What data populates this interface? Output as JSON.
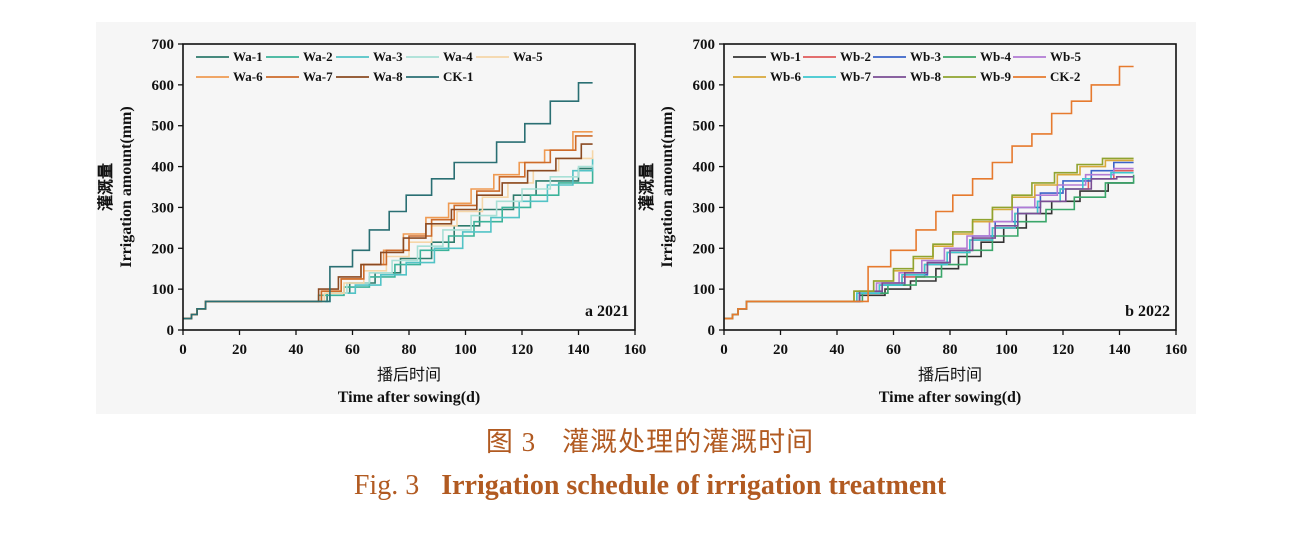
{
  "caption": {
    "cn_label": "图 3",
    "cn_title": "灌溉处理的灌溉时间",
    "en_label": "Fig. 3",
    "en_title": "Irrigation schedule of irrigation treatment"
  },
  "colors": {
    "Wa-1": "#2e7b6c",
    "Wa-2": "#3bb39a",
    "Wa-3": "#52c3c6",
    "Wa-4": "#a8e0d6",
    "Wa-5": "#f5d6a8",
    "Wa-6": "#ef9a52",
    "Wa-7": "#cd6b2a",
    "Wa-8": "#8b4a22",
    "CK-1": "#2a6f73",
    "Wb-1": "#333333",
    "Wb-2": "#e05a5a",
    "Wb-3": "#3b63c9",
    "Wb-4": "#3aa66a",
    "Wb-5": "#b27ad4",
    "Wb-6": "#d8a93a",
    "Wb-7": "#3cc7cf",
    "Wb-8": "#7a4d94",
    "Wb-9": "#8fa32f",
    "CK-2": "#e67a2e"
  },
  "chart_data": [
    {
      "type": "line",
      "panel_label": "a 2021",
      "xlabel_cn": "播后时间",
      "xlabel": "Time after sowing(d)",
      "ylabel_cn": "灌溉量",
      "ylabel": "Irrigation amount(mm)",
      "xlim": [
        0,
        160
      ],
      "ylim": [
        0,
        700
      ],
      "xticks": [
        0,
        20,
        40,
        60,
        80,
        100,
        120,
        140,
        160
      ],
      "yticks": [
        0,
        100,
        200,
        300,
        400,
        500,
        600,
        700
      ],
      "legend_position": "top",
      "series": [
        {
          "name": "Wa-1",
          "x": [
            0,
            3,
            5,
            8,
            40,
            51,
            59,
            68,
            77,
            88,
            96,
            105,
            117,
            125,
            140,
            145
          ],
          "y": [
            28,
            38,
            52,
            70,
            70,
            90,
            115,
            140,
            175,
            215,
            255,
            295,
            330,
            365,
            395,
            395
          ]
        },
        {
          "name": "Wa-2",
          "x": [
            0,
            3,
            5,
            8,
            40,
            48,
            57,
            66,
            75,
            84,
            94,
            103,
            113,
            123,
            133,
            145
          ],
          "y": [
            28,
            38,
            52,
            70,
            70,
            85,
            105,
            130,
            160,
            195,
            230,
            265,
            300,
            330,
            360,
            395
          ]
        },
        {
          "name": "Wa-3",
          "x": [
            0,
            3,
            5,
            8,
            40,
            52,
            61,
            70,
            79,
            89,
            99,
            109,
            119,
            129,
            138,
            145
          ],
          "y": [
            28,
            38,
            52,
            70,
            70,
            90,
            110,
            135,
            165,
            200,
            240,
            275,
            315,
            355,
            390,
            420
          ]
        },
        {
          "name": "Wa-4",
          "x": [
            0,
            3,
            5,
            8,
            40,
            50,
            58,
            66,
            74,
            83,
            92,
            102,
            111,
            120,
            130,
            140,
            145
          ],
          "y": [
            28,
            38,
            52,
            70,
            70,
            90,
            115,
            140,
            170,
            205,
            245,
            280,
            315,
            345,
            375,
            400,
            405
          ]
        },
        {
          "name": "Wa-5",
          "x": [
            0,
            3,
            5,
            8,
            40,
            50,
            57,
            64,
            72,
            80,
            88,
            97,
            106,
            115,
            124,
            133,
            145
          ],
          "y": [
            28,
            38,
            52,
            70,
            70,
            90,
            115,
            145,
            180,
            215,
            255,
            290,
            325,
            360,
            390,
            420,
            440
          ]
        },
        {
          "name": "Wa-6",
          "x": [
            0,
            3,
            5,
            8,
            40,
            49,
            56,
            63,
            71,
            78,
            86,
            94,
            102,
            110,
            119,
            128,
            138,
            145
          ],
          "y": [
            28,
            38,
            52,
            70,
            70,
            95,
            125,
            160,
            195,
            235,
            275,
            310,
            345,
            380,
            410,
            440,
            485,
            485
          ]
        },
        {
          "name": "Wa-7",
          "x": [
            0,
            3,
            5,
            8,
            40,
            49,
            56,
            64,
            72,
            80,
            88,
            96,
            104,
            112,
            121,
            130,
            139,
            145
          ],
          "y": [
            28,
            38,
            52,
            70,
            70,
            95,
            125,
            160,
            195,
            230,
            270,
            305,
            340,
            375,
            410,
            440,
            475,
            475
          ]
        },
        {
          "name": "Wa-8",
          "x": [
            0,
            3,
            5,
            8,
            40,
            48,
            55,
            63,
            70,
            78,
            86,
            95,
            104,
            113,
            122,
            132,
            141,
            145
          ],
          "y": [
            28,
            38,
            52,
            70,
            70,
            100,
            130,
            160,
            190,
            225,
            260,
            295,
            330,
            360,
            390,
            420,
            455,
            455
          ]
        },
        {
          "name": "CK-1",
          "x": [
            0,
            3,
            5,
            8,
            40,
            52,
            60,
            66,
            73,
            79,
            88,
            96,
            111,
            121,
            130,
            140,
            145
          ],
          "y": [
            28,
            38,
            52,
            70,
            70,
            155,
            195,
            245,
            290,
            330,
            370,
            410,
            460,
            505,
            560,
            605,
            605
          ]
        }
      ]
    },
    {
      "type": "line",
      "panel_label": "b 2022",
      "xlabel_cn": "播后时间",
      "xlabel": "Time after sowing(d)",
      "ylabel_cn": "灌溉量",
      "ylabel": "Irrigation amount(mm)",
      "xlim": [
        0,
        160
      ],
      "ylim": [
        0,
        700
      ],
      "xticks": [
        0,
        20,
        40,
        60,
        80,
        100,
        120,
        140,
        160
      ],
      "yticks": [
        0,
        100,
        200,
        300,
        400,
        500,
        600,
        700
      ],
      "legend_position": "top",
      "series": [
        {
          "name": "Wb-1",
          "x": [
            0,
            3,
            5,
            8,
            40,
            48,
            57,
            66,
            75,
            83,
            91,
            99,
            107,
            116,
            126,
            136,
            145
          ],
          "y": [
            28,
            38,
            52,
            70,
            70,
            85,
            100,
            120,
            150,
            180,
            215,
            250,
            285,
            315,
            340,
            360,
            360
          ]
        },
        {
          "name": "Wb-2",
          "x": [
            0,
            3,
            5,
            8,
            40,
            47,
            55,
            63,
            71,
            79,
            87,
            95,
            103,
            111,
            119,
            129,
            138,
            145
          ],
          "y": [
            28,
            38,
            52,
            70,
            70,
            90,
            110,
            130,
            160,
            190,
            220,
            250,
            285,
            315,
            345,
            370,
            390,
            390
          ]
        },
        {
          "name": "Wb-3",
          "x": [
            0,
            3,
            5,
            8,
            40,
            48,
            56,
            64,
            72,
            80,
            88,
            96,
            104,
            112,
            120,
            130,
            138,
            145
          ],
          "y": [
            28,
            38,
            52,
            70,
            70,
            90,
            110,
            135,
            165,
            195,
            230,
            265,
            300,
            335,
            365,
            390,
            410,
            410
          ]
        },
        {
          "name": "Wb-4",
          "x": [
            0,
            3,
            5,
            8,
            40,
            49,
            58,
            68,
            77,
            86,
            95,
            104,
            114,
            124,
            135,
            145
          ],
          "y": [
            28,
            38,
            52,
            70,
            70,
            90,
            110,
            130,
            160,
            195,
            230,
            265,
            295,
            325,
            360,
            380
          ]
        },
        {
          "name": "Wb-5",
          "x": [
            0,
            3,
            5,
            8,
            40,
            47,
            54,
            62,
            70,
            78,
            86,
            94,
            102,
            110,
            118,
            128,
            138,
            145
          ],
          "y": [
            28,
            38,
            52,
            70,
            70,
            90,
            115,
            140,
            170,
            200,
            230,
            265,
            300,
            330,
            355,
            380,
            395,
            395
          ]
        },
        {
          "name": "Wb-6",
          "x": [
            0,
            3,
            5,
            8,
            40,
            46,
            53,
            60,
            67,
            74,
            81,
            88,
            95,
            102,
            110,
            118,
            126,
            135,
            145
          ],
          "y": [
            28,
            38,
            52,
            70,
            70,
            95,
            120,
            145,
            175,
            205,
            235,
            265,
            295,
            325,
            355,
            380,
            400,
            415,
            415
          ]
        },
        {
          "name": "Wb-7",
          "x": [
            0,
            3,
            5,
            8,
            40,
            47,
            55,
            63,
            71,
            79,
            87,
            95,
            103,
            111,
            119,
            127,
            137,
            145
          ],
          "y": [
            28,
            38,
            52,
            70,
            70,
            90,
            110,
            135,
            160,
            190,
            220,
            250,
            285,
            315,
            345,
            370,
            385,
            385
          ]
        },
        {
          "name": "Wb-8",
          "x": [
            0,
            3,
            5,
            8,
            40,
            48,
            56,
            64,
            72,
            80,
            88,
            96,
            104,
            112,
            121,
            130,
            139,
            145
          ],
          "y": [
            28,
            38,
            52,
            70,
            70,
            95,
            115,
            140,
            165,
            195,
            225,
            255,
            285,
            315,
            345,
            370,
            375,
            375
          ]
        },
        {
          "name": "Wb-9",
          "x": [
            0,
            3,
            5,
            8,
            40,
            46,
            53,
            60,
            67,
            74,
            81,
            88,
            95,
            102,
            109,
            117,
            125,
            134,
            145
          ],
          "y": [
            28,
            38,
            52,
            70,
            70,
            95,
            120,
            150,
            180,
            210,
            240,
            270,
            300,
            330,
            360,
            385,
            405,
            420,
            420
          ]
        },
        {
          "name": "CK-2",
          "x": [
            0,
            3,
            5,
            8,
            40,
            51,
            59,
            68,
            75,
            81,
            88,
            95,
            102,
            109,
            116,
            123,
            130,
            140,
            145
          ],
          "y": [
            28,
            38,
            52,
            70,
            70,
            155,
            195,
            245,
            290,
            330,
            370,
            410,
            450,
            480,
            530,
            560,
            600,
            645,
            645
          ]
        }
      ]
    }
  ]
}
